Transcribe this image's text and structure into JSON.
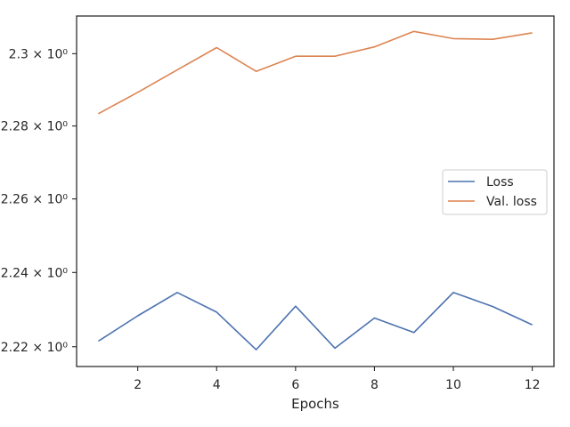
{
  "chart_data": {
    "type": "line",
    "xlabel": "Epochs",
    "ylabel": "",
    "x": [
      1,
      2,
      3,
      4,
      5,
      6,
      7,
      8,
      9,
      10,
      11,
      12
    ],
    "xlim": [
      0.45,
      12.55
    ],
    "ylim": [
      2.2147,
      2.3105
    ],
    "y_scale": "log",
    "x_ticks": [
      2,
      4,
      6,
      8,
      10,
      12
    ],
    "y_ticks": [
      {
        "value": 2.22,
        "label": "2.22 × 10⁰"
      },
      {
        "value": 2.24,
        "label": "2.24 × 10⁰"
      },
      {
        "value": 2.26,
        "label": "2.26 × 10⁰"
      },
      {
        "value": 2.28,
        "label": "2.28 × 10⁰"
      },
      {
        "value": 2.3,
        "label": "2.3 × 10⁰"
      }
    ],
    "series": [
      {
        "name": "Loss",
        "color": "#4c72b0",
        "values": [
          2.2215,
          2.2283,
          2.2346,
          2.2293,
          2.2192,
          2.2309,
          2.2196,
          2.2277,
          2.2238,
          2.2346,
          2.2308,
          2.2259
        ]
      },
      {
        "name": "Val. loss",
        "color": "#dd8452",
        "values": [
          2.2834,
          2.2893,
          2.2955,
          2.3017,
          2.2951,
          2.2993,
          2.2993,
          2.3019,
          2.3062,
          2.3042,
          2.304,
          2.3058
        ]
      }
    ],
    "legend_position": "center-right",
    "grid": false
  }
}
